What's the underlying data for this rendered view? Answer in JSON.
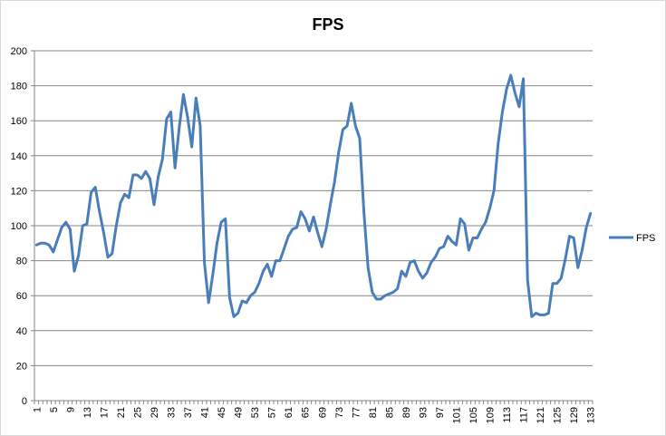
{
  "chart_data": {
    "type": "line",
    "title": "FPS",
    "xlabel": "",
    "ylabel": "",
    "ylim": [
      0,
      200
    ],
    "yticks": [
      0,
      20,
      40,
      60,
      80,
      100,
      120,
      140,
      160,
      180,
      200
    ],
    "xtick_labels": [
      "1",
      "5",
      "9",
      "13",
      "17",
      "21",
      "25",
      "29",
      "33",
      "37",
      "41",
      "45",
      "49",
      "53",
      "57",
      "61",
      "65",
      "69",
      "73",
      "77",
      "81",
      "85",
      "89",
      "93",
      "97",
      "101",
      "105",
      "109",
      "113",
      "117",
      "121",
      "125",
      "129",
      "133"
    ],
    "grid": "horizontal",
    "legend_position": "right",
    "line_color": "#4a7ebb",
    "series": [
      {
        "name": "FPS",
        "x": [
          1,
          2,
          3,
          4,
          5,
          6,
          7,
          8,
          9,
          10,
          11,
          12,
          13,
          14,
          15,
          16,
          17,
          18,
          19,
          20,
          21,
          22,
          23,
          24,
          25,
          26,
          27,
          28,
          29,
          30,
          31,
          32,
          33,
          34,
          35,
          36,
          37,
          38,
          39,
          40,
          41,
          42,
          43,
          44,
          45,
          46,
          47,
          48,
          49,
          50,
          51,
          52,
          53,
          54,
          55,
          56,
          57,
          58,
          59,
          60,
          61,
          62,
          63,
          64,
          65,
          66,
          67,
          68,
          69,
          70,
          71,
          72,
          73,
          74,
          75,
          76,
          77,
          78,
          79,
          80,
          81,
          82,
          83,
          84,
          85,
          86,
          87,
          88,
          89,
          90,
          91,
          92,
          93,
          94,
          95,
          96,
          97,
          98,
          99,
          100,
          101,
          102,
          103,
          104,
          105,
          106,
          107,
          108,
          109,
          110,
          111,
          112,
          113,
          114,
          115,
          116,
          117,
          118,
          119,
          120,
          121,
          122,
          123,
          124,
          125,
          126,
          127,
          128,
          129,
          130,
          131,
          132,
          133
        ],
        "values": [
          89,
          90,
          90,
          89,
          85,
          92,
          99,
          102,
          98,
          74,
          83,
          100,
          101,
          119,
          122,
          108,
          96,
          82,
          84,
          100,
          113,
          118,
          116,
          129,
          129,
          127,
          131,
          127,
          112,
          128,
          138,
          161,
          165,
          133,
          156,
          175,
          162,
          145,
          173,
          157,
          79,
          56,
          72,
          90,
          102,
          104,
          59,
          48,
          50,
          57,
          56,
          60,
          62,
          67,
          74,
          78,
          71,
          80,
          80,
          87,
          94,
          98,
          99,
          108,
          104,
          97,
          105,
          96,
          88,
          98,
          112,
          125,
          142,
          155,
          157,
          170,
          157,
          150,
          108,
          76,
          62,
          58,
          58,
          60,
          61,
          62,
          64,
          74,
          71,
          79,
          80,
          74,
          70,
          73,
          79,
          82,
          87,
          88,
          94,
          91,
          89,
          104,
          101,
          86,
          93,
          93,
          98,
          102,
          110,
          120,
          147,
          165,
          178,
          186,
          176,
          168,
          184,
          69,
          48,
          50,
          49,
          49,
          50,
          67,
          67,
          70,
          81,
          94,
          93,
          76,
          86,
          99,
          107
        ]
      }
    ]
  }
}
